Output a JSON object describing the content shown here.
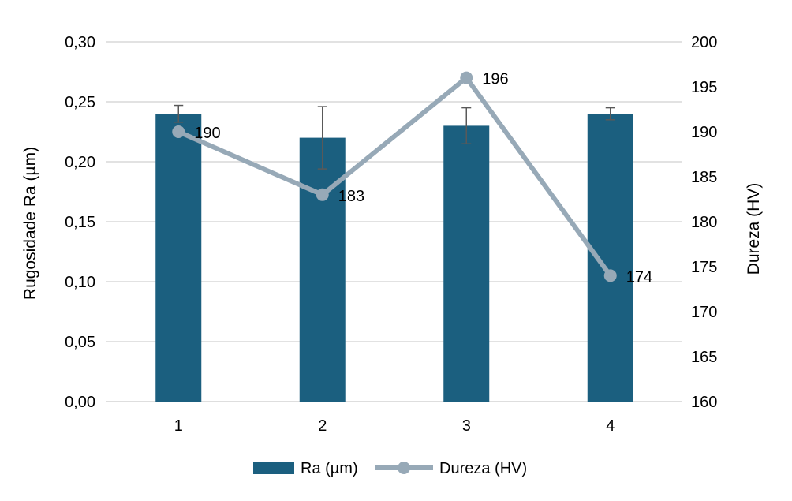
{
  "chart_data": {
    "type": "bar",
    "combo": "bar+line",
    "categories": [
      "1",
      "2",
      "3",
      "4"
    ],
    "grid": true,
    "legend_position": "bottom",
    "ylabel": "Rugosidade Ra (µm)",
    "y2label": "Dureza (HV)",
    "ylim": [
      0,
      0.3
    ],
    "y2lim": [
      160,
      200
    ],
    "yticks": [
      "0,00",
      "0,05",
      "0,10",
      "0,15",
      "0,20",
      "0,25",
      "0,30"
    ],
    "y2ticks": [
      "160",
      "165",
      "170",
      "175",
      "180",
      "185",
      "190",
      "195",
      "200"
    ],
    "series": [
      {
        "name": "Ra (µm)",
        "type": "bar",
        "axis": "left",
        "color": "#1b5f7f",
        "values": [
          0.24,
          0.22,
          0.23,
          0.24
        ],
        "error_upper": [
          0.247,
          0.246,
          0.245,
          0.245
        ],
        "error_lower": [
          0.233,
          0.194,
          0.215,
          0.235
        ]
      },
      {
        "name": "Dureza (HV)",
        "type": "line",
        "axis": "right",
        "color": "#97a9b7",
        "values": [
          190,
          183,
          196,
          174
        ],
        "labels": [
          "190",
          "183",
          "196",
          "174"
        ]
      }
    ]
  }
}
